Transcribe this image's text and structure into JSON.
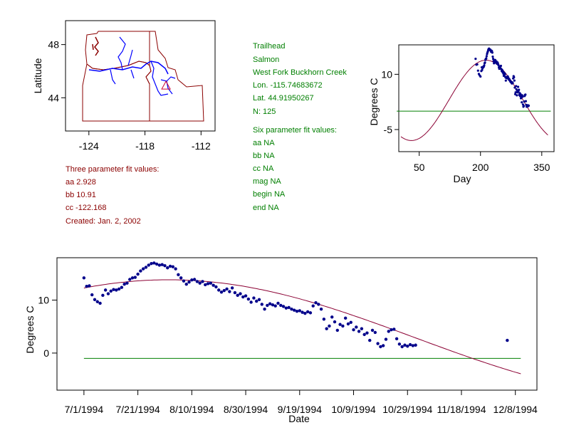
{
  "colors": {
    "frame": "#000000",
    "map_border": "#8b0000",
    "river": "#0000ff",
    "site_marker": "#cc0033",
    "station_text": "#007f00",
    "param_text": "#8b0000",
    "points": "#00008b",
    "fit_curve": "#8b0033",
    "reference_line": "#007f00"
  },
  "station": {
    "name": "Trailhead",
    "river": "Salmon",
    "site": "West Fork Buckhorn Creek",
    "lon": "Lon. -115.74683672",
    "lat": "Lat. 44.91950267",
    "n": "N: 125"
  },
  "three_param": {
    "title": "Three parameter fit values:",
    "aa": "aa 2.928",
    "bb": "bb 10.91",
    "cc": "cc -122.168",
    "created": "Created:   Jan. 2, 2002"
  },
  "six_param": {
    "title": "Six parameter fit values:",
    "aa": "aa NA",
    "bb": "bb NA",
    "cc": "cc NA",
    "mag": "mag NA",
    "begin": "begin NA",
    "end": "end NA"
  },
  "chart_data": [
    {
      "type": "map",
      "ylabel": "Latitude",
      "xticks": [
        "-124",
        "-118",
        "-112"
      ],
      "yticks": [
        "48",
        "44"
      ],
      "xlim": [
        -126.5,
        -110.5
      ],
      "ylim": [
        41.5,
        49.8
      ],
      "site": {
        "lon": -115.75,
        "lat": 44.92
      }
    },
    {
      "type": "scatter",
      "title": "",
      "xlabel": "Day",
      "ylabel": "Degrees C",
      "xticks": [
        "50",
        "200",
        "350"
      ],
      "yticks": [
        "10",
        "-5"
      ],
      "xlim": [
        0,
        380
      ],
      "ylim": [
        -11,
        18
      ],
      "reference_y": 0,
      "fit": {
        "aa": 2.928,
        "bb": 10.91,
        "cc": -122.168
      },
      "points_x": [
        188,
        190,
        192,
        194,
        196,
        198,
        200,
        202,
        203,
        204,
        205,
        206,
        207,
        208,
        209,
        210,
        211,
        212,
        213,
        214,
        215,
        216,
        217,
        218,
        219,
        220,
        221,
        222,
        223,
        224,
        225,
        226,
        227,
        228,
        229,
        230,
        231,
        232,
        233,
        234,
        235,
        236,
        237,
        238,
        239,
        240,
        241,
        242,
        243,
        244,
        245,
        246,
        247,
        248,
        249,
        250,
        251,
        252,
        253,
        254,
        255,
        256,
        257,
        258,
        259,
        260,
        261,
        262,
        263,
        264,
        265,
        266,
        267,
        268,
        269,
        270,
        271,
        272,
        273,
        274,
        275,
        276,
        277,
        278,
        279,
        280,
        281,
        282,
        283,
        284,
        285,
        286,
        287,
        288,
        289,
        290,
        291,
        292,
        293,
        294,
        295,
        296,
        297,
        298,
        299,
        300,
        301,
        302,
        303,
        304,
        305,
        306,
        307,
        308,
        309,
        310,
        311,
        312,
        313,
        314,
        315,
        316,
        317,
        318
      ],
      "points_y": [
        14.2,
        12.6,
        12.7,
        11.0,
        10.1,
        9.7,
        9.4,
        10.9,
        11.9,
        11.2,
        11.7,
        12.0,
        11.9,
        12.1,
        12.4,
        13.0,
        13.2,
        13.9,
        14.2,
        14.3,
        14.9,
        15.5,
        15.9,
        16.2,
        16.6,
        16.9,
        17.0,
        16.8,
        16.6,
        16.7,
        16.5,
        16.1,
        16.4,
        16.3,
        15.9,
        14.8,
        14.2,
        13.6,
        13.0,
        13.4,
        13.8,
        13.9,
        13.5,
        13.2,
        13.5,
        12.9,
        13.1,
        13.2,
        12.8,
        12.5,
        11.9,
        11.5,
        11.8,
        12.1,
        11.6,
        12.3,
        11.4,
        10.9,
        11.2,
        10.6,
        10.8,
        10.2,
        9.6,
        10.4,
        9.8,
        10.1,
        9.2,
        8.3,
        9.0,
        9.3,
        9.1,
        8.9,
        9.4,
        9.0,
        8.8,
        8.5,
        8.6,
        8.3,
        8.1,
        7.9,
        8.0,
        7.7,
        7.5,
        7.8,
        7.6,
        8.9,
        9.5,
        9.2,
        8.3,
        6.4,
        4.6,
        5.1,
        6.8,
        5.9,
        4.3,
        5.4,
        5.1,
        6.6,
        5.5,
        5.8,
        4.4,
        4.9,
        4.1,
        4.6,
        3.5,
        3.8,
        2.4,
        4.3,
        3.9,
        1.8,
        1.2,
        1.4,
        2.6,
        4.1,
        4.4,
        4.5,
        2.7,
        1.7,
        1.2,
        1.5,
        1.3,
        1.6,
        1.4,
        1.5
      ]
    },
    {
      "type": "scatter",
      "xlabel": "Date",
      "ylabel": "Degrees C",
      "categories": [
        "7/1/1994",
        "7/21/1994",
        "8/10/1994",
        "8/30/1994",
        "9/19/1994",
        "10/9/1994",
        "10/29/1994",
        "11/18/1994",
        "12/8/1994"
      ],
      "yticks": [
        "10",
        "0"
      ],
      "xlim": [
        172,
        350
      ],
      "ylim": [
        -7,
        18
      ],
      "reference_y": -1,
      "fit_start_day": 182,
      "fit_end_day": 344,
      "fit": {
        "aa": 2.928,
        "bb": 10.91,
        "cc": -122.168
      },
      "points_x": [
        182,
        183,
        184,
        185,
        186,
        187,
        188,
        189,
        190,
        191,
        192,
        193,
        194,
        195,
        196,
        197,
        198,
        199,
        200,
        201,
        202,
        203,
        204,
        205,
        206,
        207,
        208,
        209,
        210,
        211,
        212,
        213,
        214,
        215,
        216,
        217,
        218,
        219,
        220,
        221,
        222,
        223,
        224,
        225,
        226,
        227,
        228,
        229,
        230,
        231,
        232,
        233,
        234,
        235,
        236,
        237,
        238,
        239,
        240,
        241,
        242,
        243,
        244,
        245,
        246,
        247,
        248,
        249,
        250,
        251,
        252,
        253,
        254,
        255,
        256,
        257,
        258,
        259,
        260,
        261,
        262,
        263,
        264,
        265,
        266,
        267,
        268,
        269,
        270,
        271,
        272,
        273,
        274,
        275,
        276,
        277,
        278,
        279,
        280,
        281,
        282,
        283,
        284,
        285,
        286,
        287,
        288,
        289,
        290,
        291,
        292,
        293,
        294,
        295,
        296,
        297,
        298,
        299,
        300,
        301,
        302,
        303,
        304,
        305,
        339
      ],
      "points_y": [
        14.2,
        12.6,
        12.7,
        11.0,
        10.1,
        9.7,
        9.4,
        10.9,
        11.9,
        11.2,
        11.7,
        12.0,
        11.9,
        12.1,
        12.4,
        13.0,
        13.2,
        13.9,
        14.2,
        14.3,
        14.9,
        15.5,
        15.9,
        16.2,
        16.6,
        16.9,
        17.0,
        16.8,
        16.6,
        16.7,
        16.5,
        16.1,
        16.4,
        16.3,
        15.9,
        14.8,
        14.2,
        13.6,
        13.0,
        13.4,
        13.8,
        13.9,
        13.5,
        13.2,
        13.5,
        12.9,
        13.1,
        13.2,
        12.8,
        12.5,
        11.9,
        11.5,
        11.8,
        12.1,
        11.6,
        12.3,
        11.4,
        10.9,
        11.2,
        10.6,
        10.8,
        10.2,
        9.6,
        10.4,
        9.8,
        10.1,
        9.2,
        8.3,
        9.0,
        9.3,
        9.1,
        8.9,
        9.4,
        9.0,
        8.8,
        8.5,
        8.6,
        8.3,
        8.1,
        7.9,
        8.0,
        7.7,
        7.5,
        7.8,
        7.6,
        8.9,
        9.5,
        9.2,
        8.3,
        6.4,
        4.6,
        5.1,
        6.8,
        5.9,
        4.3,
        5.4,
        5.1,
        6.6,
        5.5,
        5.8,
        4.4,
        4.9,
        4.1,
        4.6,
        3.5,
        3.8,
        2.4,
        4.3,
        3.9,
        1.8,
        1.2,
        1.4,
        2.6,
        4.1,
        4.4,
        4.5,
        2.7,
        1.7,
        1.2,
        1.5,
        1.3,
        1.6,
        1.4,
        1.5,
        2.4
      ]
    }
  ]
}
